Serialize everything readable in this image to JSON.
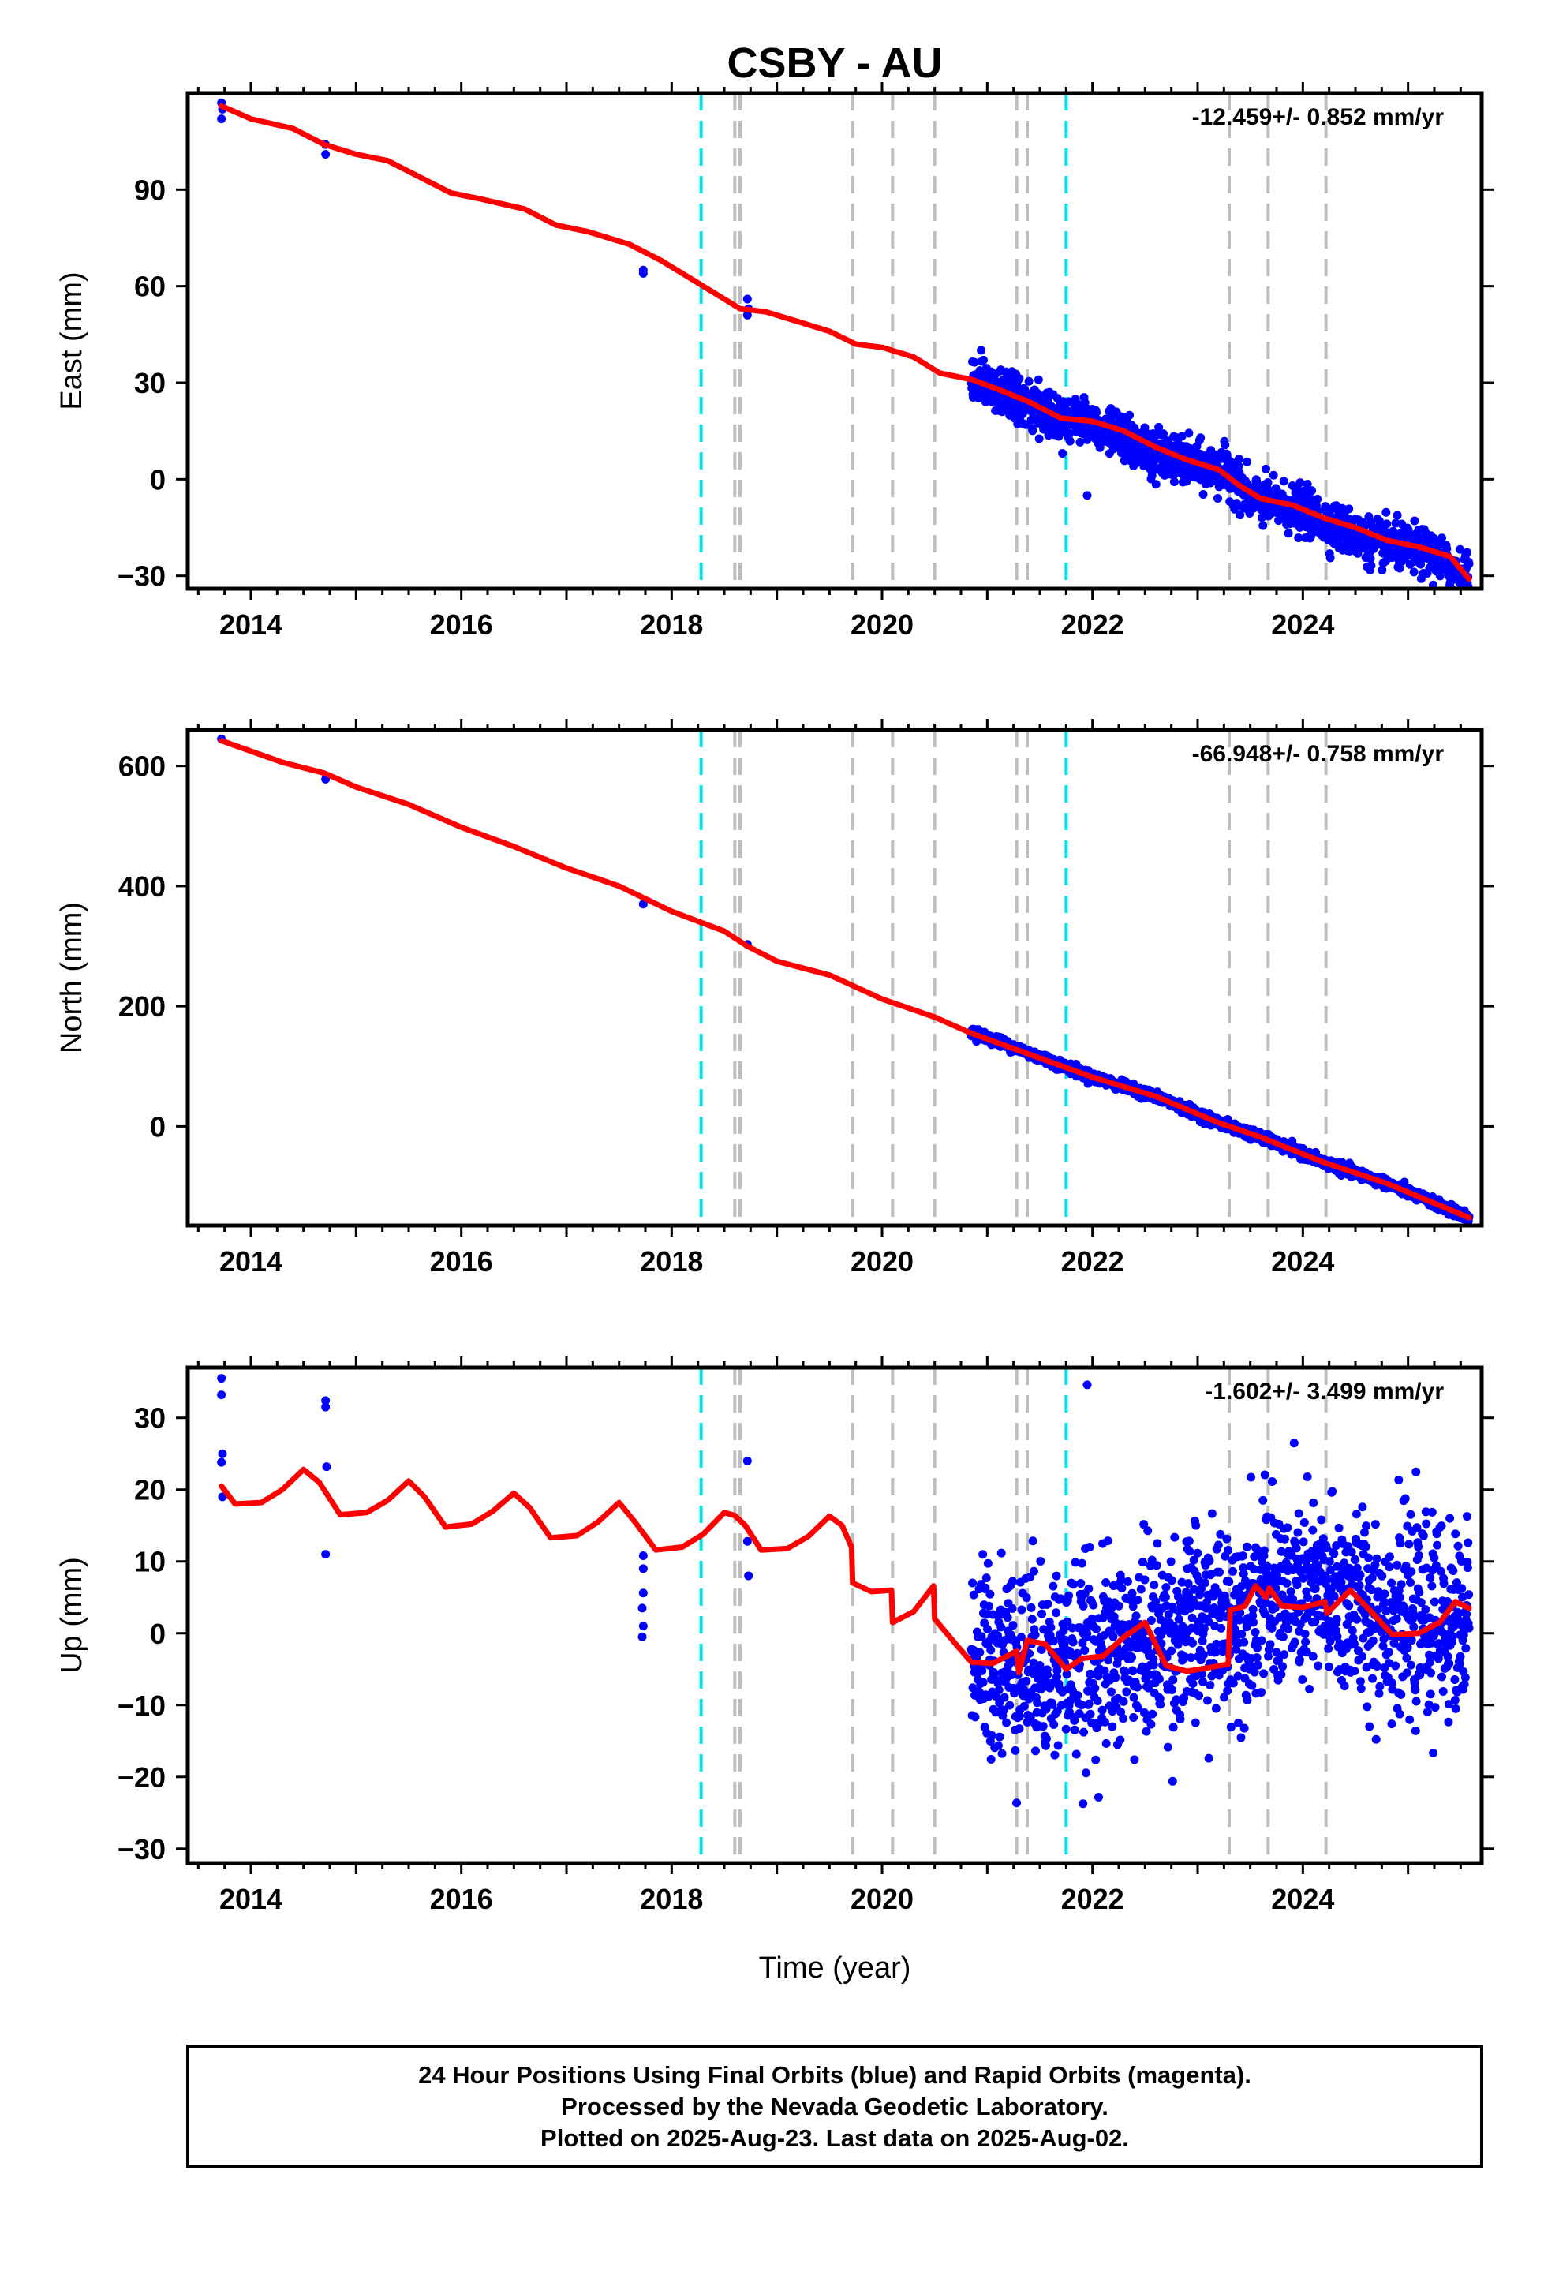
{
  "title": "CSBY - AU",
  "xlabel": "Time (year)",
  "colors": {
    "data": "#0000ff",
    "model": "#ff0000",
    "eq_line": "#00e5ee",
    "equip_line": "#bebebe"
  },
  "footer": {
    "line1": "24 Hour Positions Using Final Orbits (blue) and Rapid Orbits (magenta).",
    "line2": "Processed by the Nevada Geodetic Laboratory.",
    "line3": "Plotted on 2025-Aug-23. Last data on 2025-Aug-02."
  },
  "chart_data": [
    {
      "type": "scatter",
      "ylabel": "East (mm)",
      "rate_text": "-12.459+/- 0.852 mm/yr",
      "xlim": [
        2013.4,
        2025.7
      ],
      "ylim": [
        -34,
        120
      ],
      "xticks": [
        2014,
        2016,
        2018,
        2020,
        2022,
        2024
      ],
      "yticks": [
        -30,
        0,
        30,
        60,
        90
      ],
      "cyan_lines": [
        2018.28,
        2021.75
      ],
      "gray_lines": [
        2018.6,
        2018.65,
        2019.72,
        2020.1,
        2020.5,
        2021.28,
        2021.38,
        2023.3,
        2023.67,
        2024.22
      ],
      "series": [
        {
          "name": "daily positions (blue)",
          "style": "points",
          "early_points": [
            [
              2013.72,
              117
            ],
            [
              2013.72,
              112
            ],
            [
              2013.73,
              115
            ],
            [
              2014.71,
              104
            ],
            [
              2014.71,
              101
            ],
            [
              2017.73,
              65
            ],
            [
              2017.73,
              64
            ],
            [
              2018.72,
              56
            ],
            [
              2018.72,
              51
            ],
            [
              2018.73,
              53
            ],
            [
              2021.95,
              -5
            ]
          ],
          "dense": {
            "start": 2020.85,
            "end": 2025.58,
            "count": 1500,
            "scatter": 3.5,
            "trend": [
              [
                2020.85,
                31
              ],
              [
                2021.6,
                20
              ],
              [
                2022.0,
                18
              ],
              [
                2022.5,
                9
              ],
              [
                2023.0,
                4
              ],
              [
                2023.3,
                2
              ],
              [
                2023.5,
                -6
              ],
              [
                2024.0,
                -10
              ],
              [
                2024.6,
                -19
              ],
              [
                2025.2,
                -23
              ],
              [
                2025.58,
                -31
              ]
            ]
          }
        },
        {
          "name": "model (red)",
          "style": "line",
          "points": [
            [
              2013.72,
              116
            ],
            [
              2014.0,
              112
            ],
            [
              2014.4,
              109
            ],
            [
              2014.7,
              104
            ],
            [
              2015.0,
              101
            ],
            [
              2015.3,
              99
            ],
            [
              2015.6,
              94
            ],
            [
              2015.9,
              89
            ],
            [
              2016.2,
              87
            ],
            [
              2016.6,
              84
            ],
            [
              2016.9,
              79
            ],
            [
              2017.2,
              77
            ],
            [
              2017.6,
              73
            ],
            [
              2017.9,
              68
            ],
            [
              2018.2,
              62
            ],
            [
              2018.4,
              58
            ],
            [
              2018.65,
              53
            ],
            [
              2018.9,
              52
            ],
            [
              2019.2,
              49
            ],
            [
              2019.5,
              46
            ],
            [
              2019.75,
              42
            ],
            [
              2020.0,
              41
            ],
            [
              2020.3,
              38
            ],
            [
              2020.55,
              33
            ],
            [
              2020.85,
              31
            ],
            [
              2021.1,
              28
            ],
            [
              2021.4,
              24
            ],
            [
              2021.7,
              19
            ],
            [
              2022.0,
              18
            ],
            [
              2022.3,
              15
            ],
            [
              2022.6,
              10
            ],
            [
              2022.9,
              6
            ],
            [
              2023.2,
              3
            ],
            [
              2023.4,
              -2
            ],
            [
              2023.6,
              -6
            ],
            [
              2023.9,
              -8
            ],
            [
              2024.2,
              -12
            ],
            [
              2024.5,
              -15
            ],
            [
              2024.8,
              -19
            ],
            [
              2025.1,
              -21
            ],
            [
              2025.4,
              -24
            ],
            [
              2025.58,
              -31
            ]
          ]
        }
      ]
    },
    {
      "type": "scatter",
      "ylabel": "North (mm)",
      "rate_text": "-66.948+/- 0.758 mm/yr",
      "xlim": [
        2013.4,
        2025.7
      ],
      "ylim": [
        -165,
        660
      ],
      "xticks": [
        2014,
        2016,
        2018,
        2020,
        2022,
        2024
      ],
      "yticks": [
        0,
        200,
        400,
        600
      ],
      "cyan_lines": [
        2018.28,
        2021.75
      ],
      "gray_lines": [
        2018.6,
        2018.65,
        2019.72,
        2020.1,
        2020.5,
        2021.28,
        2021.38,
        2023.3,
        2023.67,
        2024.22
      ],
      "series": [
        {
          "name": "daily positions (blue)",
          "style": "points",
          "early_points": [
            [
              2013.72,
              645
            ],
            [
              2014.71,
              578
            ],
            [
              2017.73,
              370
            ],
            [
              2018.72,
              303
            ]
          ],
          "dense": {
            "start": 2020.85,
            "end": 2025.58,
            "count": 1500,
            "scatter": 4,
            "trend": [
              [
                2020.85,
                158
              ],
              [
                2021.4,
                122
              ],
              [
                2022.0,
                82
              ],
              [
                2022.6,
                50
              ],
              [
                2023.2,
                6
              ],
              [
                2023.6,
                -18
              ],
              [
                2024.2,
                -60
              ],
              [
                2024.8,
                -95
              ],
              [
                2025.58,
                -152
              ]
            ]
          }
        },
        {
          "name": "model (red)",
          "style": "line",
          "points": [
            [
              2013.72,
              642
            ],
            [
              2014.3,
              606
            ],
            [
              2014.7,
              588
            ],
            [
              2015.0,
              565
            ],
            [
              2015.5,
              536
            ],
            [
              2016.0,
              498
            ],
            [
              2016.5,
              466
            ],
            [
              2017.0,
              430
            ],
            [
              2017.5,
              400
            ],
            [
              2018.0,
              358
            ],
            [
              2018.5,
              325
            ],
            [
              2018.72,
              300
            ],
            [
              2019.0,
              275
            ],
            [
              2019.5,
              252
            ],
            [
              2020.0,
              212
            ],
            [
              2020.5,
              182
            ],
            [
              2020.85,
              155
            ],
            [
              2021.4,
              120
            ],
            [
              2022.0,
              82
            ],
            [
              2022.6,
              50
            ],
            [
              2023.2,
              6
            ],
            [
              2023.6,
              -18
            ],
            [
              2024.2,
              -60
            ],
            [
              2024.8,
              -95
            ],
            [
              2025.58,
              -152
            ]
          ]
        }
      ]
    },
    {
      "type": "scatter",
      "ylabel": "Up (mm)",
      "rate_text": "-1.602+/- 3.499 mm/yr",
      "xlim": [
        2013.4,
        2025.7
      ],
      "ylim": [
        -32,
        37
      ],
      "xticks": [
        2014,
        2016,
        2018,
        2020,
        2022,
        2024
      ],
      "yticks": [
        -30,
        -20,
        -10,
        0,
        10,
        20,
        30
      ],
      "cyan_lines": [
        2018.28,
        2021.75
      ],
      "gray_lines": [
        2018.6,
        2018.65,
        2019.72,
        2020.1,
        2020.5,
        2021.28,
        2021.38,
        2023.3,
        2023.67,
        2024.22
      ],
      "series": [
        {
          "name": "daily positions (blue)",
          "style": "points",
          "early_points": [
            [
              2013.72,
              35.5
            ],
            [
              2013.72,
              33.2
            ],
            [
              2013.73,
              25
            ],
            [
              2013.72,
              23.8
            ],
            [
              2013.73,
              19
            ],
            [
              2014.71,
              32.4
            ],
            [
              2014.71,
              31.5
            ],
            [
              2014.72,
              23.2
            ],
            [
              2014.71,
              11
            ],
            [
              2017.73,
              10.8
            ],
            [
              2017.73,
              9
            ],
            [
              2017.73,
              5.6
            ],
            [
              2017.72,
              3.5
            ],
            [
              2017.73,
              1
            ],
            [
              2017.72,
              -0.5
            ],
            [
              2018.72,
              24
            ],
            [
              2018.72,
              12.8
            ],
            [
              2018.73,
              8
            ],
            [
              2021.95,
              34.6
            ]
          ],
          "dense": {
            "start": 2020.85,
            "end": 2025.58,
            "count": 1500,
            "scatter": 6.5,
            "trend": [
              [
                2020.85,
                -3
              ],
              [
                2021.5,
                -4
              ],
              [
                2022.0,
                -4
              ],
              [
                2022.6,
                -1
              ],
              [
                2023.3,
                2
              ],
              [
                2023.6,
                5
              ],
              [
                2024.3,
                5
              ],
              [
                2024.9,
                2
              ],
              [
                2025.58,
                1
              ]
            ]
          }
        },
        {
          "name": "model (red)",
          "style": "line",
          "points": [
            [
              2013.72,
              20.5
            ],
            [
              2013.85,
              18
            ],
            [
              2014.1,
              18.2
            ],
            [
              2014.3,
              20
            ],
            [
              2014.5,
              22.8
            ],
            [
              2014.65,
              21
            ],
            [
              2014.85,
              16.5
            ],
            [
              2015.1,
              16.8
            ],
            [
              2015.3,
              18.5
            ],
            [
              2015.5,
              21.2
            ],
            [
              2015.65,
              19
            ],
            [
              2015.85,
              14.8
            ],
            [
              2016.1,
              15.2
            ],
            [
              2016.3,
              17
            ],
            [
              2016.5,
              19.5
            ],
            [
              2016.65,
              17.5
            ],
            [
              2016.85,
              13.3
            ],
            [
              2017.1,
              13.6
            ],
            [
              2017.3,
              15.5
            ],
            [
              2017.5,
              18.2
            ],
            [
              2017.65,
              15.5
            ],
            [
              2017.85,
              11.6
            ],
            [
              2018.1,
              12
            ],
            [
              2018.3,
              13.8
            ],
            [
              2018.5,
              16.8
            ],
            [
              2018.6,
              16.4
            ],
            [
              2018.7,
              15
            ],
            [
              2018.85,
              11.6
            ],
            [
              2019.1,
              11.8
            ],
            [
              2019.3,
              13.5
            ],
            [
              2019.5,
              16.3
            ],
            [
              2019.62,
              15
            ],
            [
              2019.71,
              12
            ],
            [
              2019.72,
              7
            ],
            [
              2019.9,
              5.8
            ],
            [
              2020.09,
              6
            ],
            [
              2020.1,
              1.5
            ],
            [
              2020.3,
              3
            ],
            [
              2020.49,
              6.6
            ],
            [
              2020.5,
              2
            ],
            [
              2020.7,
              -1.5
            ],
            [
              2020.85,
              -4
            ],
            [
              2021.05,
              -4.2
            ],
            [
              2021.28,
              -2.5
            ],
            [
              2021.3,
              -5.5
            ],
            [
              2021.38,
              -1
            ],
            [
              2021.55,
              -1.5
            ],
            [
              2021.75,
              -5
            ],
            [
              2021.9,
              -3.5
            ],
            [
              2022.1,
              -3.2
            ],
            [
              2022.3,
              -0.5
            ],
            [
              2022.5,
              1.5
            ],
            [
              2022.7,
              -4.5
            ],
            [
              2022.9,
              -5.3
            ],
            [
              2023.1,
              -4.8
            ],
            [
              2023.29,
              -4.3
            ],
            [
              2023.31,
              3.2
            ],
            [
              2023.45,
              3.8
            ],
            [
              2023.55,
              6.6
            ],
            [
              2023.65,
              5
            ],
            [
              2023.68,
              6.3
            ],
            [
              2023.8,
              3.8
            ],
            [
              2024.0,
              3.6
            ],
            [
              2024.21,
              4.4
            ],
            [
              2024.23,
              2.8
            ],
            [
              2024.45,
              6
            ],
            [
              2024.65,
              3
            ],
            [
              2024.85,
              -0.2
            ],
            [
              2025.1,
              0
            ],
            [
              2025.3,
              1.5
            ],
            [
              2025.45,
              4.4
            ],
            [
              2025.58,
              3.5
            ]
          ]
        }
      ]
    }
  ]
}
